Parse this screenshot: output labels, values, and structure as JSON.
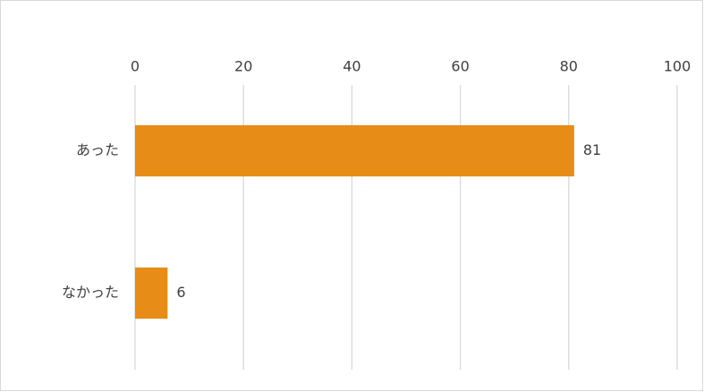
{
  "chart_data": {
    "type": "bar",
    "orientation": "horizontal",
    "categories": [
      "あった",
      "なかった"
    ],
    "values": [
      81,
      6
    ],
    "color": "#e68c17",
    "xlim": [
      0,
      100
    ],
    "xticks": [
      0,
      20,
      40,
      60,
      80,
      100
    ],
    "grid": true,
    "data_labels": true
  }
}
